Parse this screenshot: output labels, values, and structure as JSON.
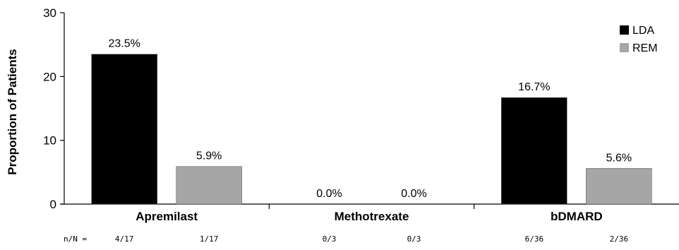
{
  "chart_data": {
    "type": "bar",
    "title": "",
    "xlabel": "",
    "ylabel": "Proportion of Patients",
    "ylim": [
      0,
      30
    ],
    "yticks": [
      0,
      10,
      20,
      30
    ],
    "categories": [
      "Apremilast",
      "Methotrexate",
      "bDMARD"
    ],
    "series": [
      {
        "name": "LDA",
        "color": "#000000",
        "values": [
          23.5,
          0.0,
          16.7
        ],
        "data_labels": [
          "23.5%",
          "0.0%",
          "16.7%"
        ],
        "n_over_N": [
          "4/17",
          "0/3",
          "6/36"
        ]
      },
      {
        "name": "REM",
        "color": "#a6a6a6",
        "values": [
          5.9,
          0.0,
          5.6
        ],
        "data_labels": [
          "5.9%",
          "0.0%",
          "5.6%"
        ],
        "n_over_N": [
          "1/17",
          "0/3",
          "2/36"
        ]
      }
    ],
    "n_row_label": "n/N =",
    "legend_position": "top-right",
    "grid": false
  }
}
